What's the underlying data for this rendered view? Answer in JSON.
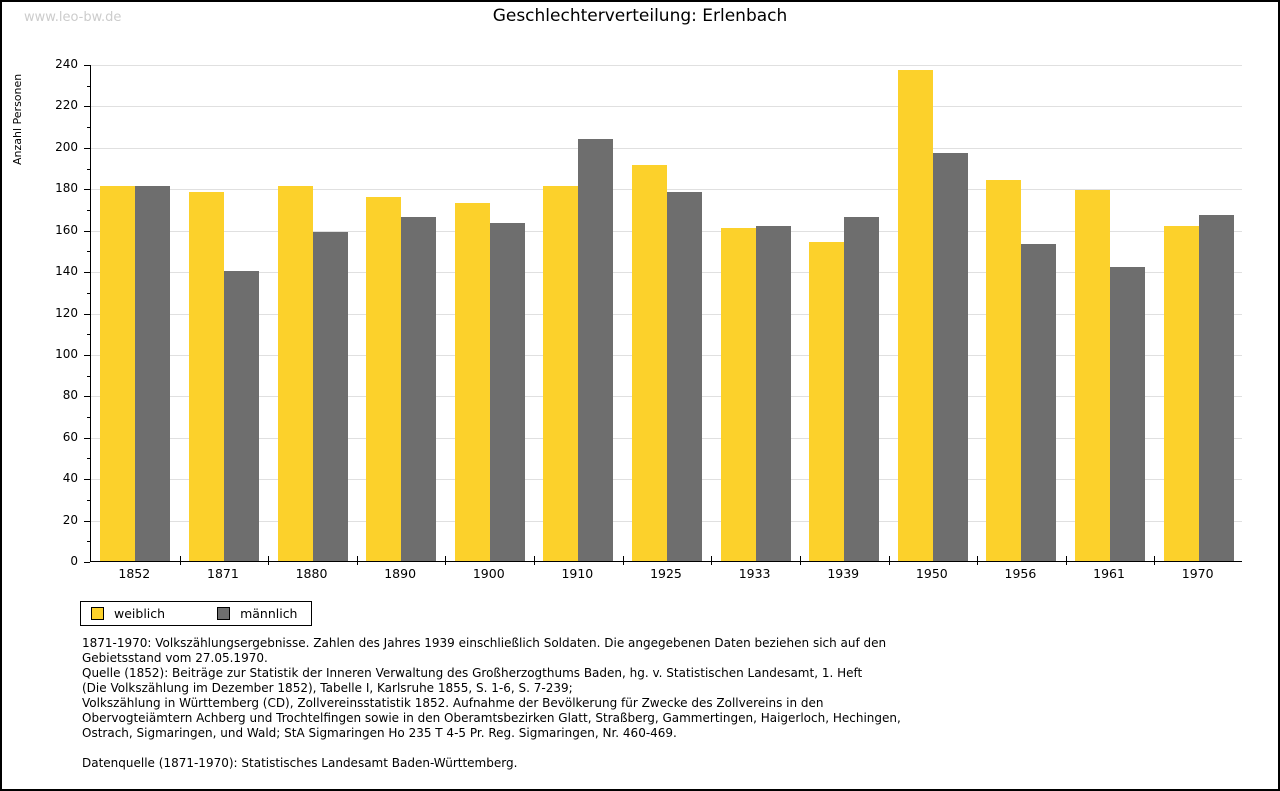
{
  "watermark": "www.leo-bw.de",
  "title": "Geschlechterverteilung: Erlenbach",
  "chart_data": {
    "type": "bar",
    "title": "Geschlechterverteilung: Erlenbach",
    "xlabel": "",
    "ylabel": "Anzahl Personen",
    "ylim": [
      0,
      240
    ],
    "ytick_step": 20,
    "minor_tick_step": 10,
    "grid": true,
    "legend_position": "bottom-left",
    "categories": [
      "1852",
      "1871",
      "1880",
      "1890",
      "1900",
      "1910",
      "1925",
      "1933",
      "1939",
      "1950",
      "1956",
      "1961",
      "1970"
    ],
    "series": [
      {
        "name": "weiblich",
        "color": "#fcd12b",
        "values": [
          181,
          178,
          181,
          176,
          173,
          181,
          191,
          161,
          154,
          237,
          184,
          179,
          162
        ]
      },
      {
        "name": "männlich",
        "color": "#6e6e6e",
        "values": [
          181,
          140,
          159,
          166,
          163,
          204,
          178,
          162,
          166,
          197,
          153,
          142,
          167
        ]
      }
    ]
  },
  "footnotes": [
    "1871-1970: Volkszählungsergebnisse. Zahlen des Jahres 1939 einschließlich Soldaten. Die angegebenen Daten beziehen sich auf den",
    "Gebietsstand vom 27.05.1970.",
    "Quelle (1852): Beiträge zur Statistik der Inneren Verwaltung des Großherzogthums Baden, hg. v. Statistischen Landesamt, 1. Heft",
    "(Die Volkszählung im Dezember 1852), Tabelle I, Karlsruhe 1855, S. 1-6, S. 7-239;",
    "Volkszählung in Württemberg (CD), Zollvereinsstatistik 1852. Aufnahme der Bevölkerung für Zwecke des Zollvereins in den",
    "Obervogteiämtern Achberg und Trochtelfingen sowie in den Oberamtsbezirken Glatt, Straßberg, Gammertingen, Haigerloch, Hechingen,",
    "Ostrach, Sigmaringen, und Wald; StA Sigmaringen Ho 235 T 4-5 Pr. Reg. Sigmaringen, Nr. 460-469."
  ],
  "datasource": "Datenquelle (1871-1970): Statistisches Landesamt Baden-Württemberg."
}
